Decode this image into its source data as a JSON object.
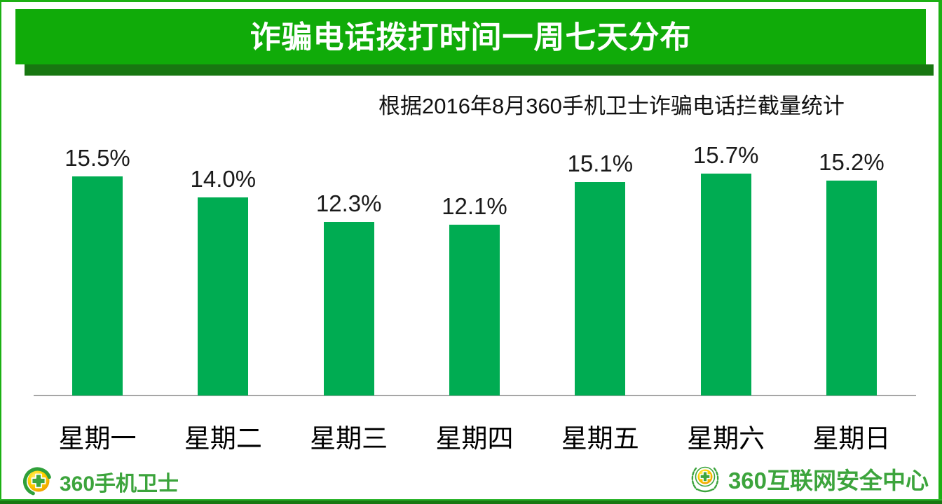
{
  "header": {
    "title": "诈骗电话拨打时间一周七天分布",
    "subtitle": "根据2016年8月360手机卫士诈骗电话拦截量统计"
  },
  "chart_data": {
    "type": "bar",
    "categories": [
      "星期一",
      "星期二",
      "星期三",
      "星期四",
      "星期五",
      "星期六",
      "星期日"
    ],
    "values": [
      15.5,
      14.0,
      12.3,
      12.1,
      15.1,
      15.7,
      15.2
    ],
    "value_labels": [
      "15.5%",
      "14.0%",
      "12.3%",
      "12.1%",
      "15.1%",
      "15.7%",
      "15.2%"
    ],
    "title": "诈骗电话拨打时间一周七天分布",
    "xlabel": "",
    "ylabel": "",
    "ylim": [
      0,
      18
    ],
    "grid": false,
    "legend": false,
    "bar_color": "#00ac52",
    "value_label_position": "above-bar",
    "axis_line_color": "#a6a6a6"
  },
  "footer": {
    "left_brand": "360手机卫士",
    "right_brand": "360互联网安全中心"
  },
  "colors": {
    "banner_green": "#10ab09",
    "banner_shadow_green": "#187711",
    "bar_green": "#00ac52",
    "frame_green": "#1cb013",
    "logo_text_green": "#3ca43c"
  }
}
